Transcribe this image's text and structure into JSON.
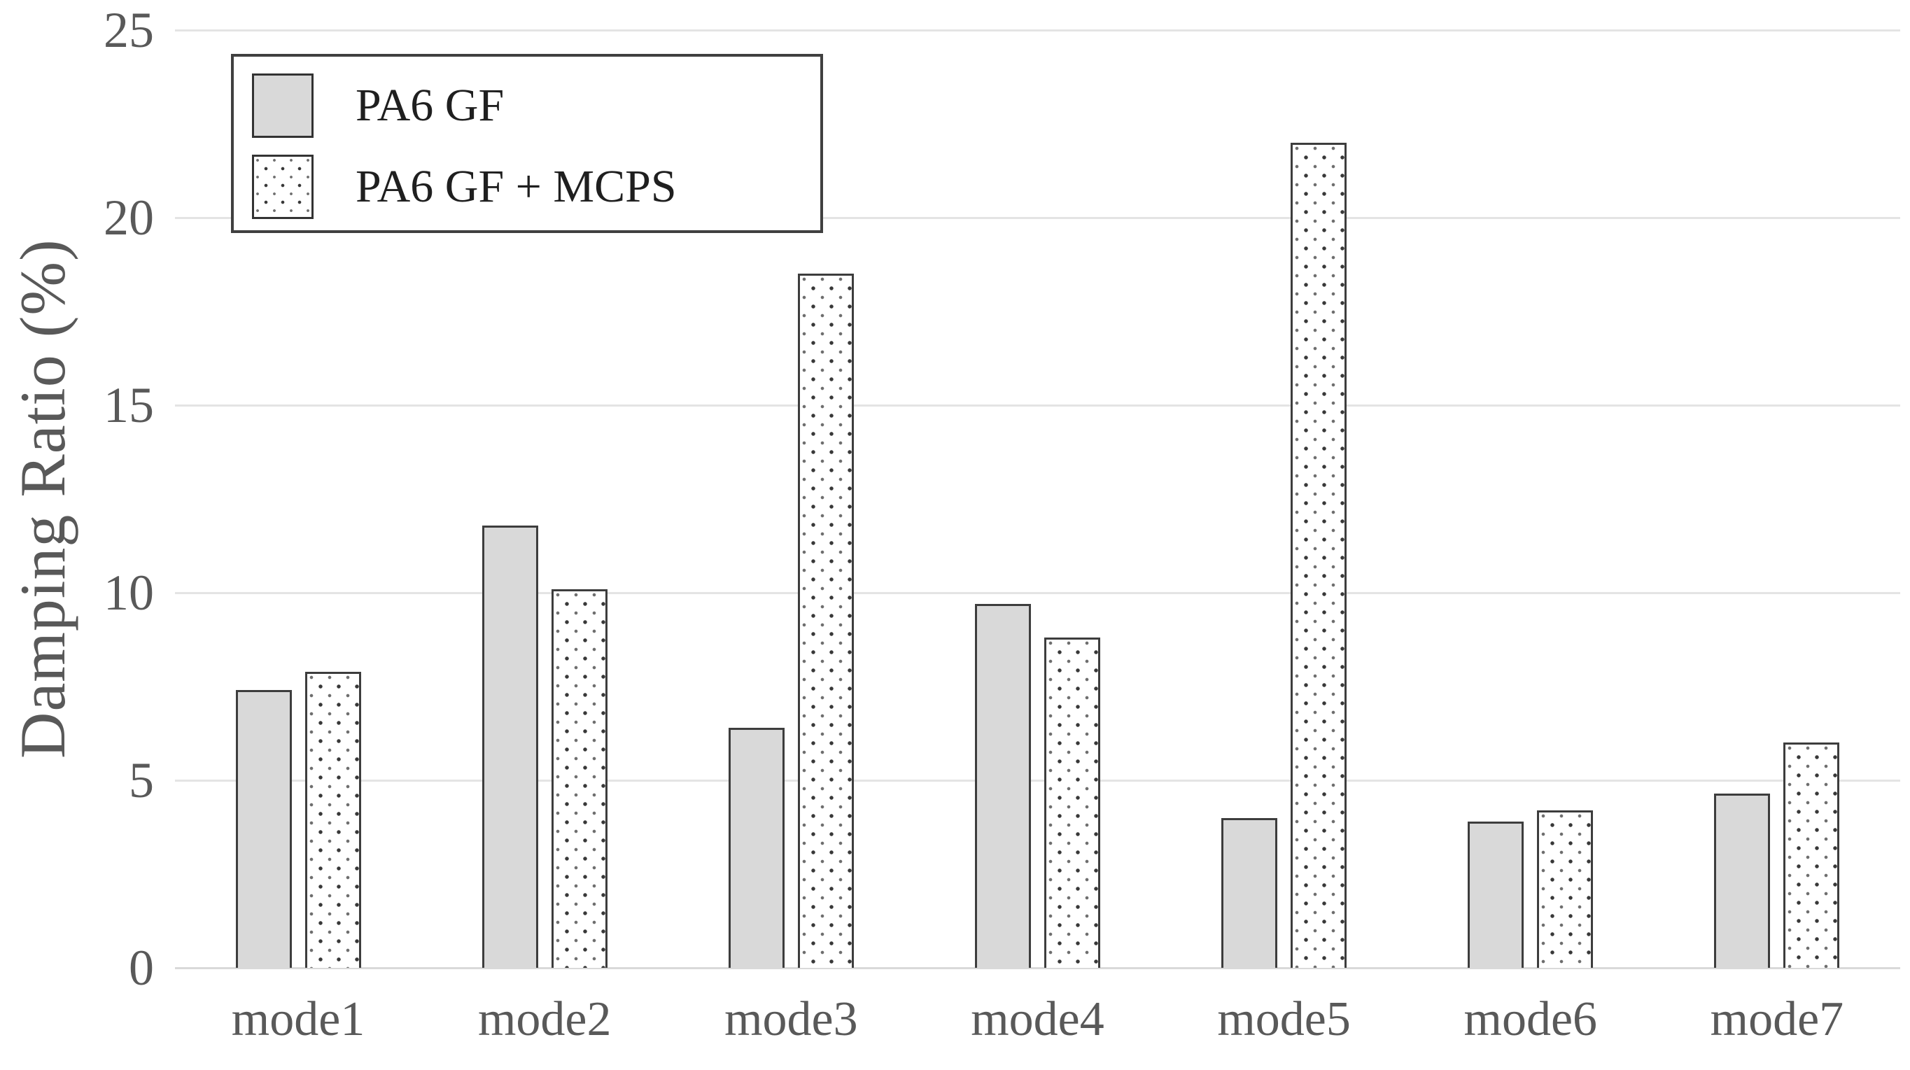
{
  "chart_data": {
    "type": "bar",
    "title": "",
    "xlabel": "",
    "ylabel": "Damping Ratio (%)",
    "categories": [
      "mode1",
      "mode2",
      "mode3",
      "mode4",
      "mode5",
      "mode6",
      "mode7"
    ],
    "series": [
      {
        "name": "PA6 GF",
        "style": "solid-gray",
        "values": [
          7.4,
          11.8,
          6.4,
          9.7,
          4.0,
          3.9,
          4.65
        ]
      },
      {
        "name": "PA6 GF + MCPS",
        "style": "dotted",
        "values": [
          7.9,
          10.1,
          18.5,
          8.8,
          22.0,
          4.2,
          6.0
        ]
      }
    ],
    "ylim": [
      0,
      25
    ],
    "yticks": [
      0,
      5,
      10,
      15,
      20,
      25
    ],
    "grid": true,
    "legend_position": "top-left"
  },
  "colors": {
    "bar_fill": "#d9d9d9",
    "bar_border": "#3d3d3d",
    "dot_color": "#383838",
    "gridline": "#e4e4e4",
    "axis_text": "#595959",
    "legend_text": "#1f1f1f",
    "legend_border": "#404040",
    "background": "#ffffff"
  }
}
